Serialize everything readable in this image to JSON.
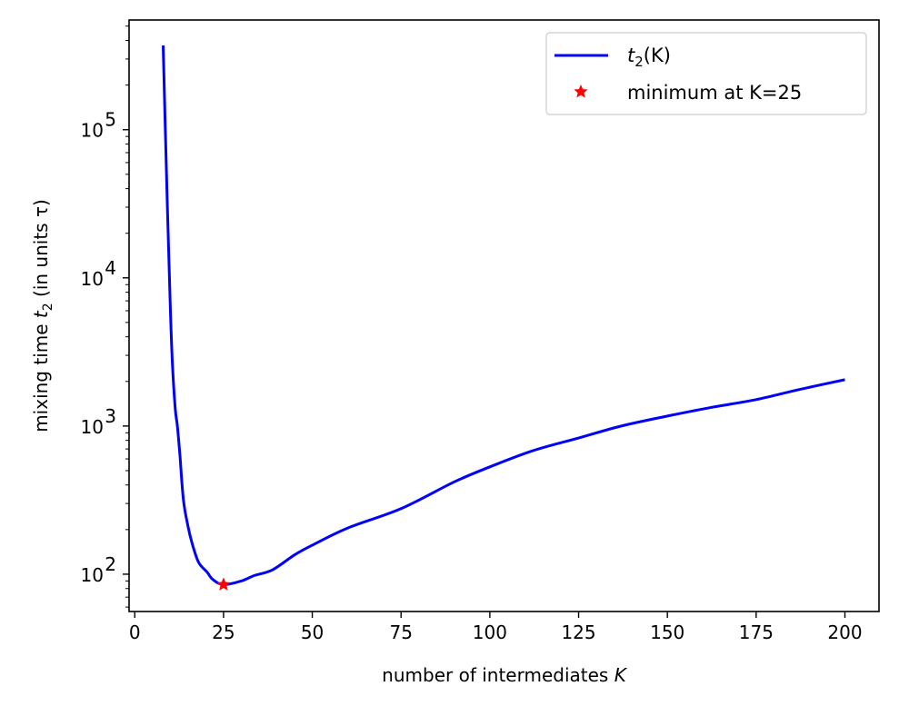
{
  "chart_data": {
    "type": "line",
    "title": "",
    "xlabel": "number of intermediates K",
    "xlabel_plain": "number of intermediates ",
    "xlabel_italic": "K",
    "ylabel": "mixing time t_2 (in units τ)",
    "ylabel_parts": {
      "pre": "mixing time ",
      "var": "t",
      "sub": "2",
      "post": " (in units τ)"
    },
    "xscale": "linear",
    "yscale": "log",
    "xlim": [
      -1.6,
      209.6
    ],
    "ylim": [
      56,
      550000
    ],
    "xticks": [
      0,
      25,
      50,
      75,
      100,
      125,
      150,
      175,
      200
    ],
    "xtick_labels": [
      "0",
      "25",
      "50",
      "75",
      "100",
      "125",
      "150",
      "175",
      "200"
    ],
    "yticks": [
      100,
      1000,
      10000,
      100000
    ],
    "ytick_labels": [
      {
        "base": "10",
        "exp": "2"
      },
      {
        "base": "10",
        "exp": "3"
      },
      {
        "base": "10",
        "exp": "4"
      },
      {
        "base": "10",
        "exp": "5"
      }
    ],
    "grid": false,
    "legend_position": "upper right",
    "series": [
      {
        "name": "t2(K)",
        "legend_label": {
          "var": "t",
          "sub": "2",
          "post": "(K)"
        },
        "color": "#0000ff",
        "style": "line",
        "x": [
          8,
          9,
          10,
          10.6,
          11.4,
          12,
          12.7,
          13.7,
          15,
          16.3,
          18,
          20.4,
          22,
          25,
          30,
          33.7,
          38.8,
          45,
          50,
          60,
          75,
          90,
          100,
          112,
          125,
          137,
          150,
          162,
          175,
          187,
          200
        ],
        "y": [
          370000,
          44000,
          6500,
          2650,
          1309,
          1000,
          645,
          318,
          210,
          157,
          120,
          103,
          92,
          85,
          90,
          98,
          107,
          135,
          157,
          205,
          277,
          420,
          530,
          680,
          830,
          1000,
          1168,
          1330,
          1507,
          1760,
          2055
        ]
      },
      {
        "name": "minimum at K=25",
        "legend_label": {
          "text": "minimum at K=25"
        },
        "color": "#ff0000",
        "style": "marker-star",
        "x": [
          25
        ],
        "y": [
          85
        ]
      }
    ]
  },
  "colors": {
    "line": "#0000ff",
    "marker": "#ff0000",
    "axes": "#000000",
    "legend_border": "#cccccc",
    "background": "#ffffff"
  }
}
